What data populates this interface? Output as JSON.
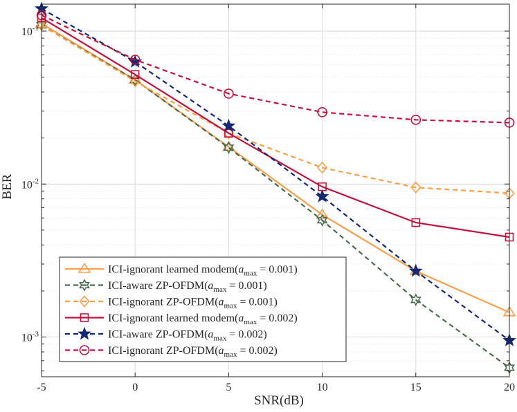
{
  "chart_data": {
    "type": "line",
    "xlabel": "SNR(dB)",
    "ylabel": "BER",
    "y_scale": "log",
    "xlim": [
      -5,
      20
    ],
    "ylim": [
      0.00055,
      0.15
    ],
    "grid": true,
    "legend_position": "bottom-left",
    "x": [
      -5,
      0,
      5,
      10,
      15,
      20
    ],
    "x_tick_labels": [
      "-5",
      "0",
      "5",
      "10",
      "15",
      "20"
    ],
    "y_ticks": [
      {
        "value": 0.1,
        "base": "10",
        "exp": "-1"
      },
      {
        "value": 0.01,
        "base": "10",
        "exp": "-2"
      },
      {
        "value": 0.001,
        "base": "10",
        "exp": "-3"
      }
    ],
    "series": [
      {
        "name_prefix": "ICI-ignorant learned modem(",
        "name_sym": "a",
        "name_sub": "max",
        "name_suffix": " = 0.001)",
        "color": "#F7A04B",
        "dash": "solid",
        "marker": "triangle",
        "values": [
          0.112,
          0.048,
          0.0175,
          0.0063,
          0.0027,
          0.00145
        ]
      },
      {
        "name_prefix": "ICI-aware ZP-OFDM(",
        "name_sym": "a",
        "name_sub": "max",
        "name_suffix": " = 0.001)",
        "color": "#4A6B4D",
        "dash": "dashed",
        "marker": "hexagram",
        "values": [
          0.109,
          0.048,
          0.0173,
          0.0058,
          0.00175,
          0.00063
        ]
      },
      {
        "name_prefix": "ICI-ignorant ZP-OFDM(",
        "name_sym": "a",
        "name_sub": "max",
        "name_suffix": " = 0.001)",
        "color": "#F7A04B",
        "dash": "dashed",
        "marker": "diamond",
        "values": [
          0.109,
          0.047,
          0.0215,
          0.0128,
          0.0095,
          0.0087
        ]
      },
      {
        "name_prefix": "ICI-ignorant learned modem(",
        "name_sym": "a",
        "name_sub": "max",
        "name_suffix": " = 0.002)",
        "color": "#C0123C",
        "dash": "solid",
        "marker": "square",
        "values": [
          0.122,
          0.052,
          0.0215,
          0.0096,
          0.0056,
          0.0045
        ]
      },
      {
        "name_prefix": "ICI-aware ZP-OFDM(",
        "name_sym": "a",
        "name_sub": "max",
        "name_suffix": " = 0.002)",
        "color": "#142874",
        "dash": "dashed",
        "marker": "star",
        "values": [
          0.14,
          0.063,
          0.024,
          0.0083,
          0.0027,
          0.00095
        ]
      },
      {
        "name_prefix": "ICI-ignorant ZP-OFDM(",
        "name_sym": "a",
        "name_sub": "max",
        "name_suffix": " = 0.002)",
        "color": "#C0123C",
        "dash": "dashed",
        "marker": "circle",
        "values": [
          0.127,
          0.065,
          0.039,
          0.0295,
          0.0263,
          0.0252
        ]
      }
    ]
  }
}
